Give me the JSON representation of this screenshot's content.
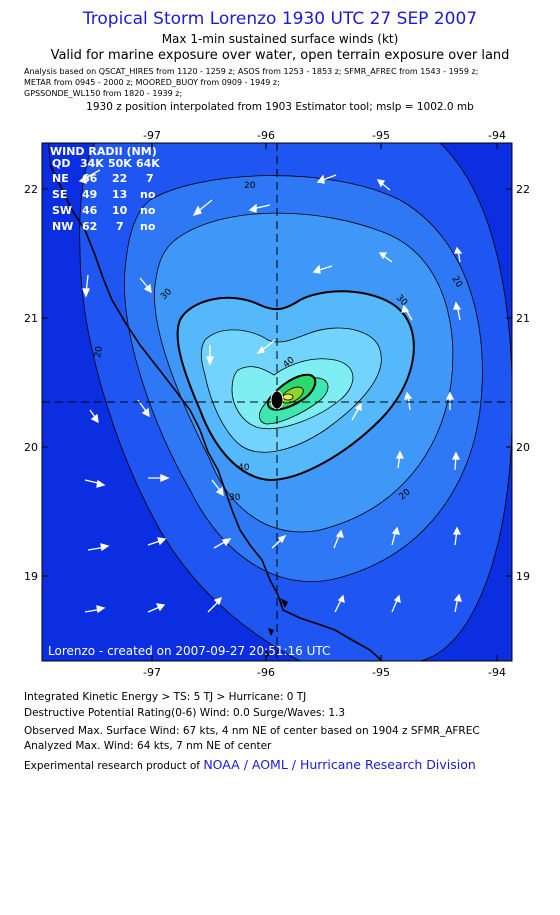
{
  "header": {
    "title": "Tropical Storm Lorenzo 1930 UTC 27 SEP 2007",
    "subtitle": "Max 1-min sustained surface winds (kt)",
    "validity": "Valid for marine exposure over water, open terrain exposure over land",
    "analysis_sources": [
      "Analysis based on  QSCAT_HIRES from 1120 - 1259 z;  ASOS from 1253 - 1853 z;  SFMR_AFREC from 1543 - 1959 z;",
      "METAR from 0945 - 2000 z;  MOORED_BUOY from 0909 - 1949 z;",
      "GPSSONDE_WL150 from 1820 - 1939 z;"
    ],
    "position_note": "1930 z position interpolated from 1903 Estimator tool; mslp = 1002.0 mb"
  },
  "map": {
    "lon_ticks": [
      "-97",
      "-96",
      "-95",
      "-94"
    ],
    "lat_ticks": [
      "22",
      "21",
      "20",
      "19"
    ],
    "contour_labels": [
      "20",
      "20",
      "20",
      "20",
      "30",
      "30",
      "30",
      "40",
      "40"
    ],
    "credit": "Lorenzo - created on 2007-09-27 20:51:16 UTC",
    "wind_radii": {
      "title": "WIND RADII (NM)",
      "header": [
        "QD",
        "34K",
        "50K",
        "64K"
      ],
      "rows": [
        [
          "NE",
          "66",
          "22",
          "7"
        ],
        [
          "SE",
          "49",
          "13",
          "no"
        ],
        [
          "SW",
          "46",
          "10",
          "no"
        ],
        [
          "NW",
          "62",
          "7",
          "no"
        ]
      ]
    },
    "colors": {
      "outer": "#0a2ee0",
      "ring20": "#1f55f0",
      "ring25": "#2f78f5",
      "ring30": "#3f98f8",
      "ring35": "#55b8fb",
      "ring40": "#72d4fc",
      "ring45": "#7feef2",
      "ring50": "#3ee6b2",
      "ring55": "#2cd86a",
      "ring60": "#8cd82a",
      "ring64": "#f0ee4a",
      "center_lines": "#000000"
    }
  },
  "footer": {
    "ike": "Integrated Kinetic Energy > TS: 5 TJ   > Hurricane: 0 TJ",
    "dpr": "Destructive Potential Rating(0-6)   Wind: 0.0 Surge/Waves: 1.3",
    "observed": "Observed Max. Surface Wind: 67 kts, 4 nm NE of center based on 1904 z SFMR_AFREC",
    "analyzed": "Analyzed Max. Wind: 64 kts, 7 nm NE of center",
    "credit_prefix": "Experimental research product of",
    "credit_link": "NOAA / AOML / Hurricane Research Division"
  }
}
